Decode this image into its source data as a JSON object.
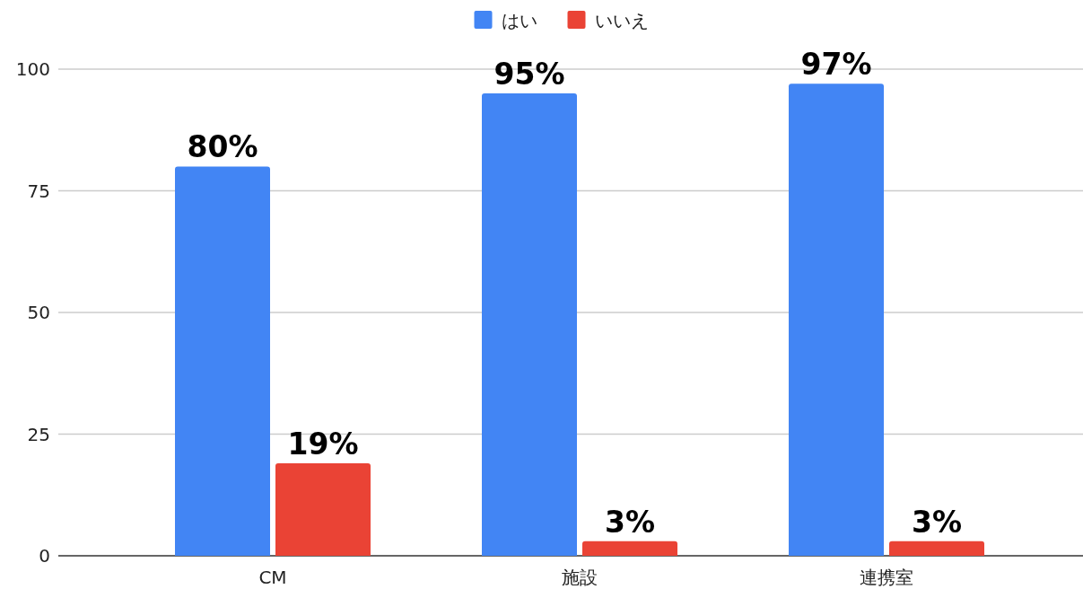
{
  "chart_data": {
    "type": "bar",
    "categories": [
      "CM",
      "施設",
      "連携室"
    ],
    "series": [
      {
        "name": "はい",
        "color": "#4285f4",
        "values": [
          80,
          95,
          97
        ],
        "value_labels": [
          "80%",
          "95%",
          "97%"
        ]
      },
      {
        "name": "いいえ",
        "color": "#ea4335",
        "values": [
          19,
          3,
          3
        ],
        "value_labels": [
          "19%",
          "3%",
          "3%"
        ]
      }
    ],
    "ylim": [
      0,
      100
    ],
    "yticks": [
      0,
      25,
      50,
      75,
      100
    ],
    "grid": "y",
    "legend": "top"
  }
}
